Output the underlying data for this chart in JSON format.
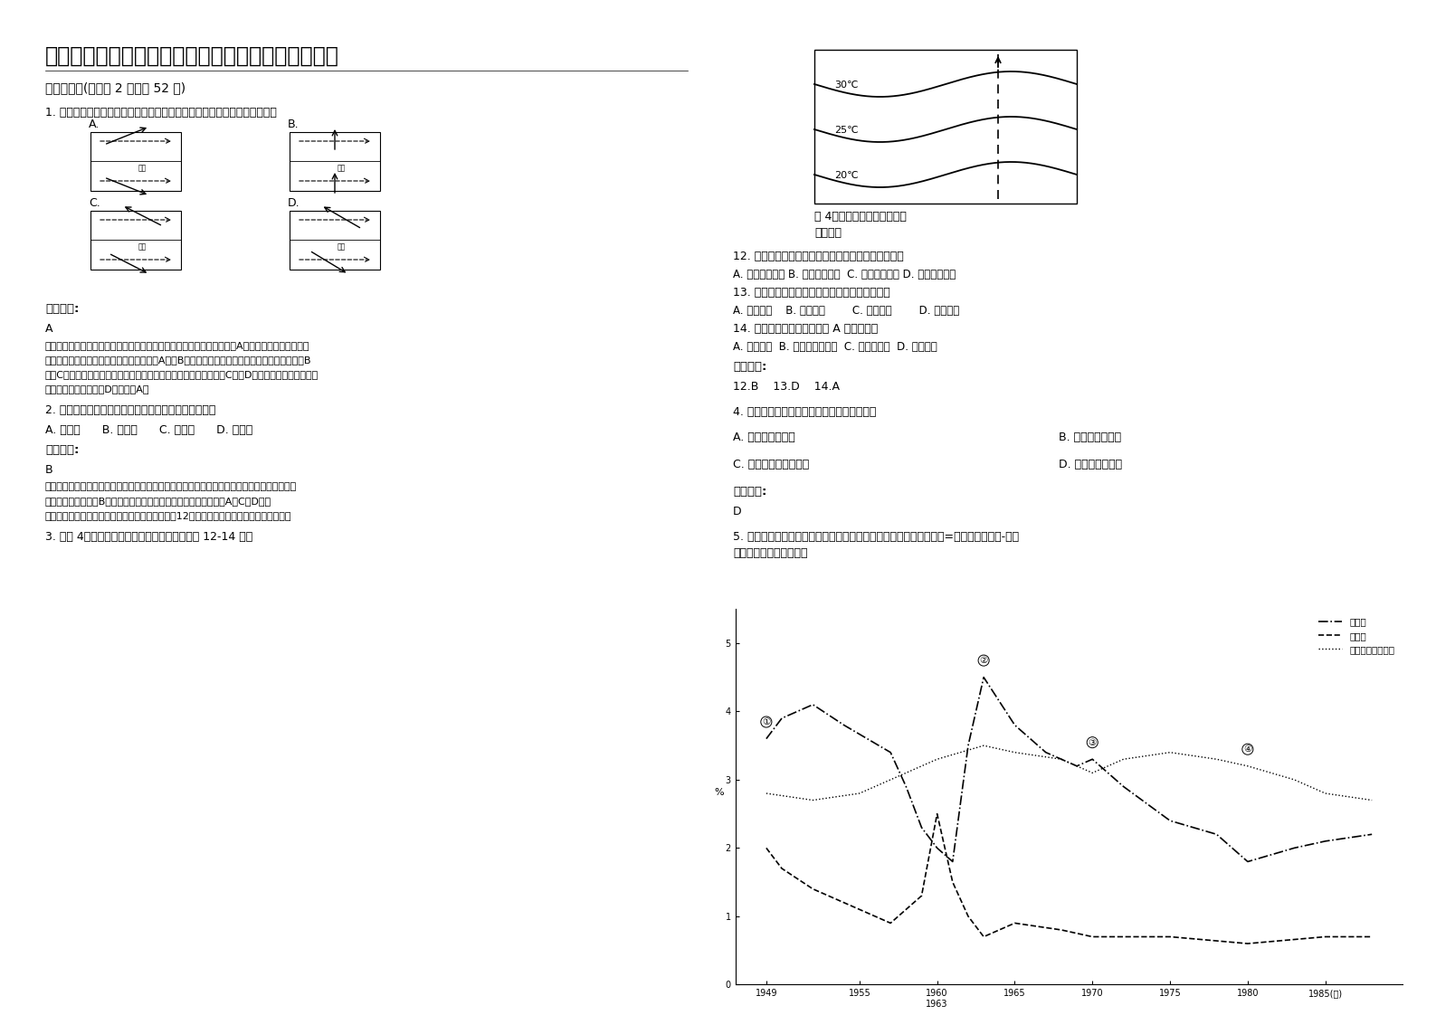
{
  "title": "河北省保定市第二高级中学高一地理期末试卷含解析",
  "background_color": "#ffffff",
  "section1": "一、选择题(每小题 2 分，共 52 分)",
  "q1": "1. 下图中虚线表示水平运动物体的初始方向，实线表示其偏转方向正确的是",
  "ans_label": "参考答案:",
  "q1_ans": "A",
  "q1_exp1": "试题分析：根据地转偏向力的特征，在北半球向右偏，在南半球向左偏。A图中赤道两侧分别位于南",
  "q1_exp2": "北半球，北侧向右偏转，南侧应向左偏转，A对。B图中的北半球向左偏转，南半球的向右偏转，B",
  "q1_exp3": "错。C图中的两物体偏转方向北半球为向左偏转，南半球向右偏转，C错。D图中的物体北半球向左偏",
  "q1_exp4": "转，南半球向右偏转，D错。故选A。",
  "q2": "2. 红日初升，其道大光。西安一年中日出最早的时间是",
  "q2_opts": "A. 春分日      B. 夏至日      C. 秋分日      D. 冬至日",
  "q2_ans": "B",
  "q2_exp1": "红日初升，其道大光。西安一年中日出最早的时间是一年中昼长最长的日期，夏至日北半球昼长",
  "q2_exp2": "达到一年中最大值，B对。冬至日是昼长最小值，二分日昼长居中。A、C、D错。",
  "q2_exp3": "点睛：夏至日是一年中昼长最长的日期，各地正午12点时间不变，昼越长，日出时间越早。",
  "q3": "3. 读图 4，海洋某区域的表层海水等温线图回答 12-14 题。",
  "fig4_cap1": "图 4，海洋某区域的表层海水",
  "fig4_cap2": "等温线图",
  "q12": "12. 有关该海域所在半球和洋流性质的叙述，正确的是",
  "q12_opts": "A. 北半球、暖流 B. 南半球、寒流  C. 南半球、暖流 D. 北半球、寒流",
  "q13": "13. 有关该洋流对沿岸气候影响的叙述，正确的是",
  "q13_opts": "A. 增温增湿    B. 增温减湿        C. 降温增湿        D. 降温减湿",
  "q14": "14. 如果该海域在太平洋，则 A 洋流应该是",
  "q14_opts": "A. 秘鲁寒流  B. 加利福尼亚寒流  C. 本格拉寒流  D. 千岛寒流",
  "q12_14_ans": "12.B    13.D    14.A",
  "q4": "4. 决定太阳在地球表面的直射点移动范围的是",
  "q4_optA": "A. 地球的自转运动",
  "q4_optB": "B. 地球的球体形状",
  "q4_optC": "C. 地球在宇宙中的位置",
  "q4_optD": "D. 黄赤交角的大小",
  "q4_ans": "D",
  "q5_1": "5. 根据中国科学院国情分析课题小组的研究报告，剩余劳动力增长率=人口自然增长率-社会",
  "q5_2": "劳动者增长率，读图完成",
  "legend1": "出生率",
  "legend2": "死亡率",
  "legend3": "社会劳动者增长率"
}
